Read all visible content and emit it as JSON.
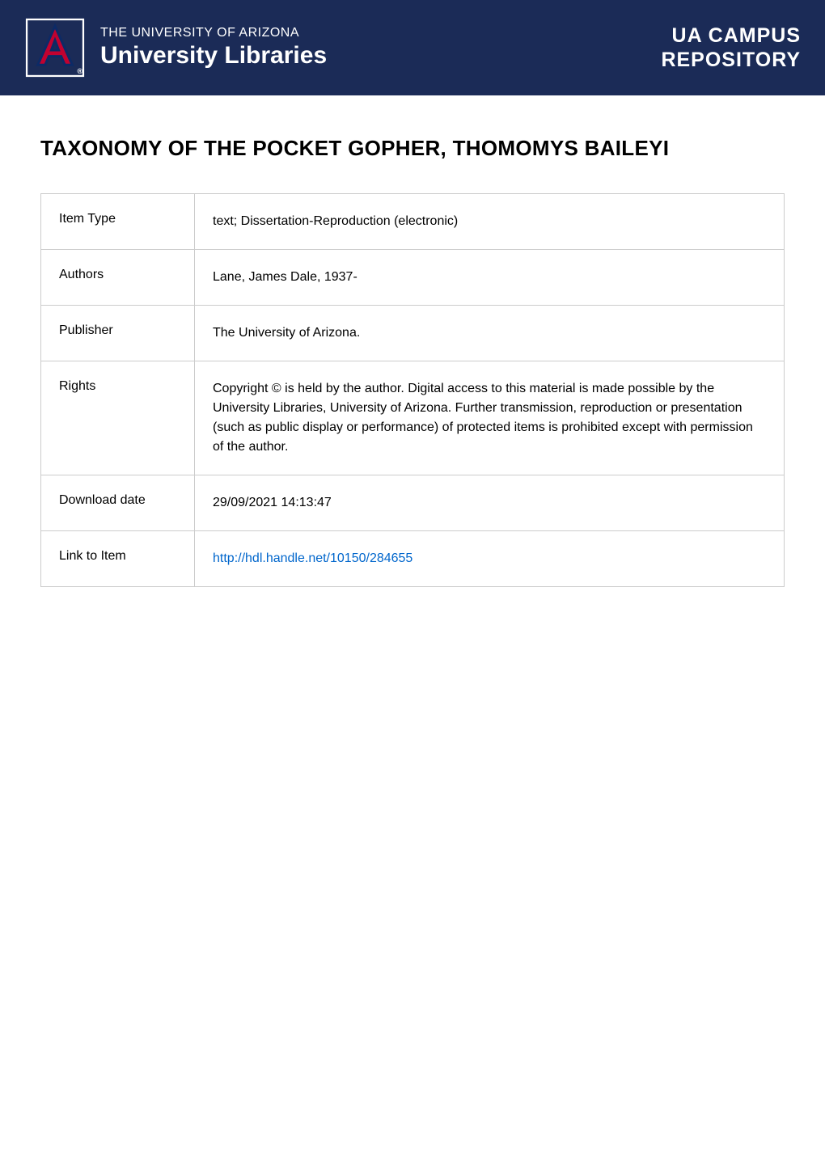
{
  "banner": {
    "background_color": "#1b2b57",
    "text_color": "#ffffff",
    "university_name": "THE UNIVERSITY OF ARIZONA",
    "libraries_text": "University Libraries",
    "repository_line1": "UA CAMPUS",
    "repository_line2": "REPOSITORY",
    "logo_colors": {
      "border": "#ffffff",
      "red": "#c10230",
      "blue": "#0c2a66"
    }
  },
  "title": "TAXONOMY OF THE POCKET GOPHER, THOMOMYS BAILEYI",
  "metadata": {
    "rows": [
      {
        "label": "Item Type",
        "value": "text; Dissertation-Reproduction (electronic)"
      },
      {
        "label": "Authors",
        "value": "Lane, James Dale, 1937-"
      },
      {
        "label": "Publisher",
        "value": "The University of Arizona."
      },
      {
        "label": "Rights",
        "value": "Copyright © is held by the author. Digital access to this material is made possible by the University Libraries, University of Arizona. Further transmission, reproduction or presentation (such as public display or performance) of protected items is prohibited except with permission of the author."
      },
      {
        "label": "Download date",
        "value": "29/09/2021 14:13:47"
      },
      {
        "label": "Link to Item",
        "value": "http://hdl.handle.net/10150/284655",
        "is_link": true
      }
    ]
  },
  "styles": {
    "table_border_color": "#cccccc",
    "link_color": "#0066cc",
    "title_fontsize": 26,
    "cell_fontsize": 16,
    "cell_padding": 22
  }
}
